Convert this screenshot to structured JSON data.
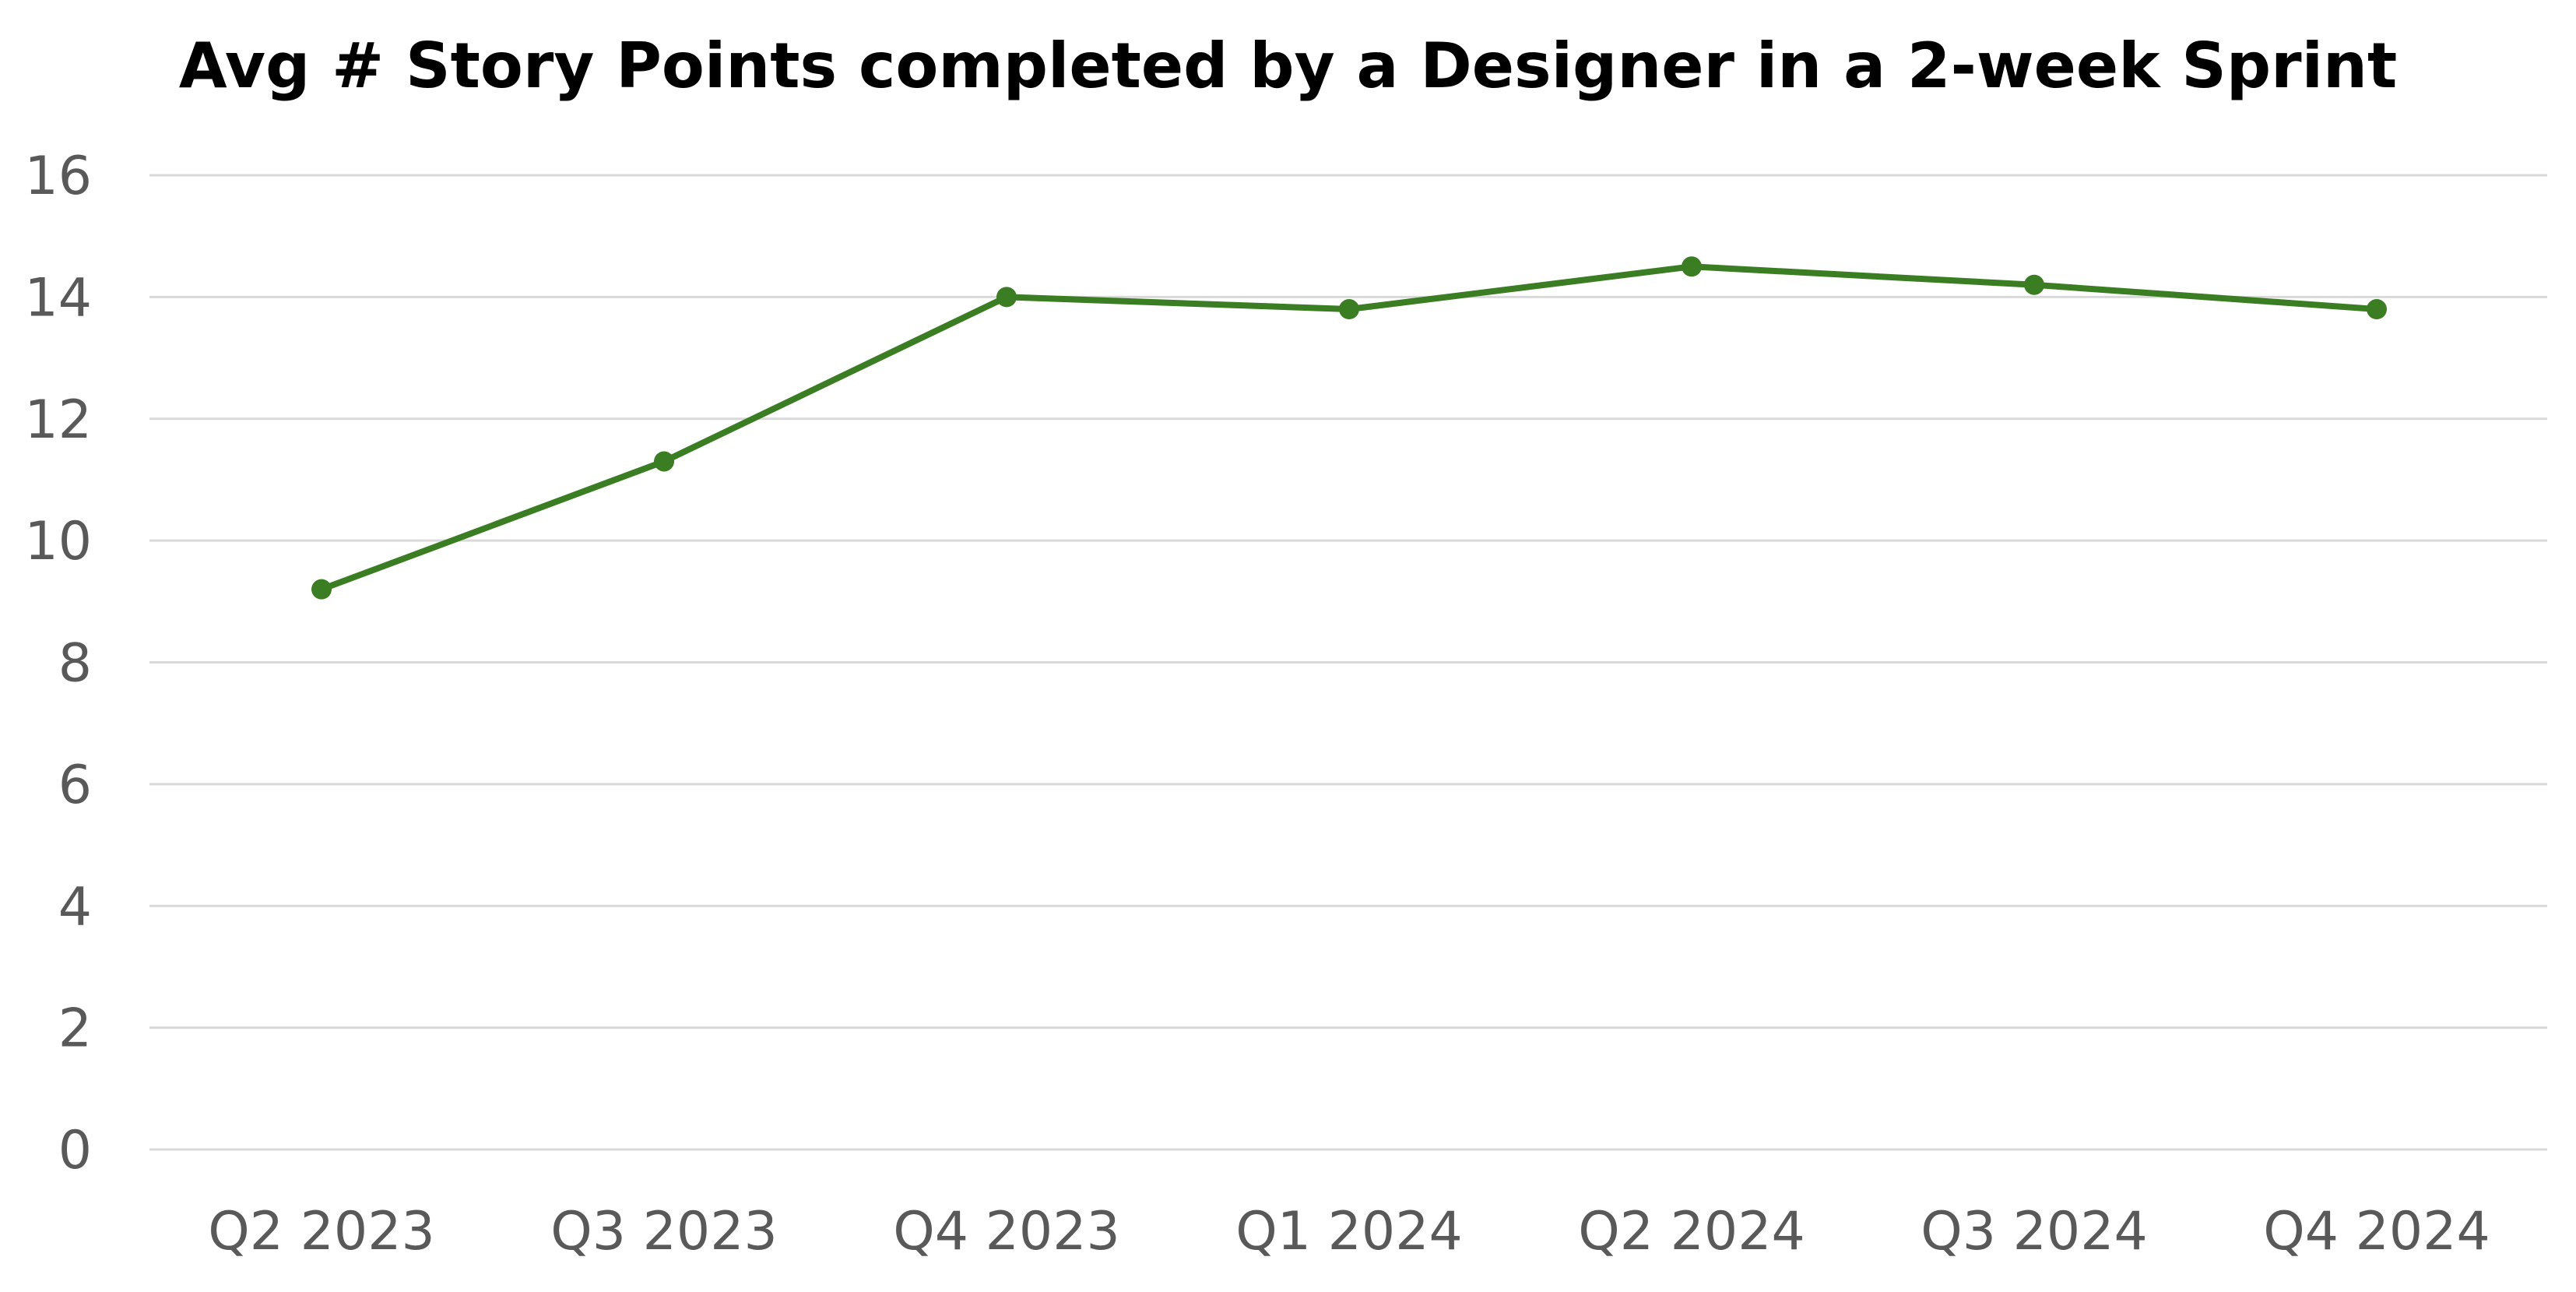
{
  "chart_data": {
    "type": "line",
    "title": "Avg # Story Points completed by a Designer in a 2-week Sprint",
    "categories": [
      "Q2 2023",
      "Q3 2023",
      "Q4 2023",
      "Q1 2024",
      "Q2 2024",
      "Q3 2024",
      "Q4 2024"
    ],
    "series": [
      {
        "values": [
          9.2,
          11.3,
          14.0,
          13.8,
          14.5,
          14.2,
          13.8
        ],
        "color": "#3a7d22"
      }
    ],
    "xlabel": "",
    "ylabel": "",
    "ylim": [
      0,
      16
    ],
    "yticks": [
      "0",
      "2",
      "4",
      "6",
      "8",
      "10",
      "12",
      "14",
      "16"
    ],
    "grid": true,
    "legend": "none",
    "colors": {
      "grid": "#d9d9d9",
      "tick_text": "#595959",
      "title_text": "#000000"
    }
  }
}
